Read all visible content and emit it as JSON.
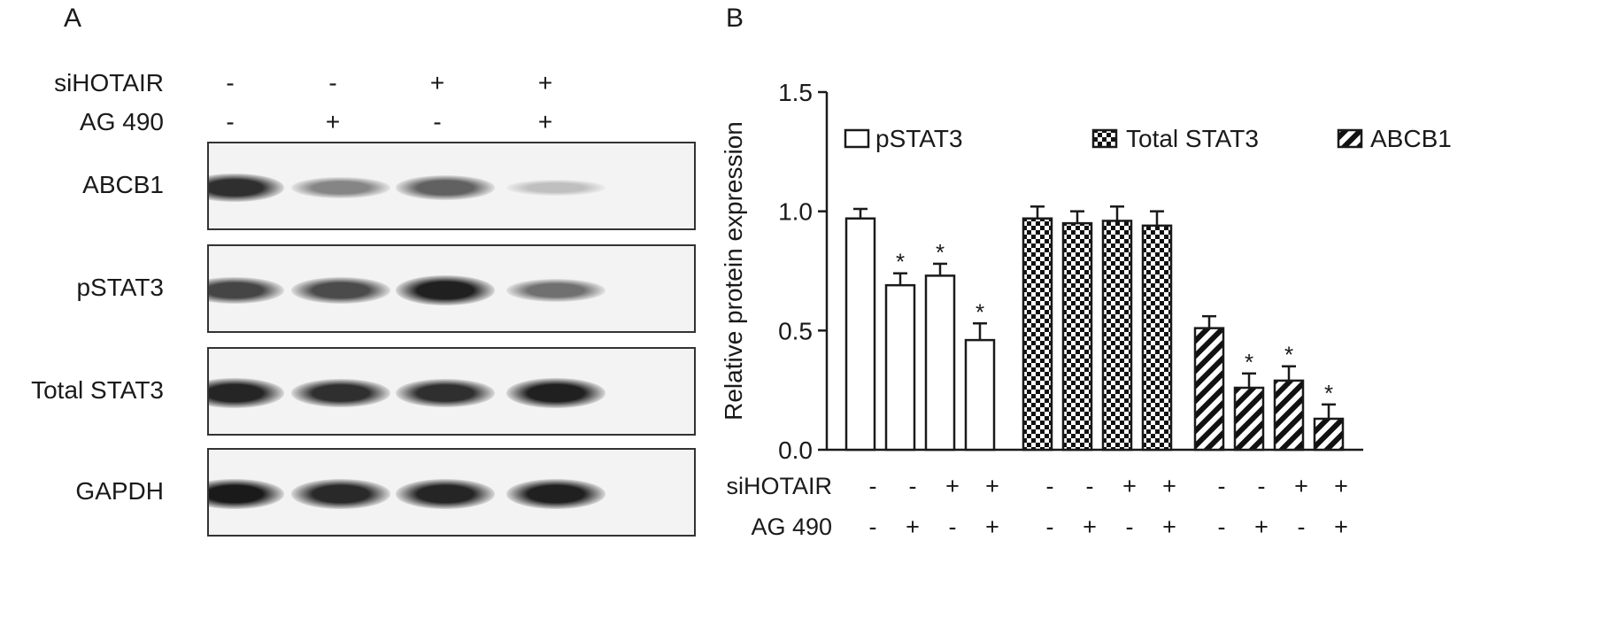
{
  "panel_a": {
    "letter": "A",
    "conditions": [
      {
        "name": "siHOTAIR",
        "signs": [
          "-",
          "-",
          "+",
          "+"
        ]
      },
      {
        "name": "AG 490",
        "signs": [
          "-",
          "+",
          "-",
          "+"
        ]
      }
    ],
    "blots": [
      {
        "label": "ABCB1",
        "intensities": [
          0.85,
          0.45,
          0.62,
          0.18
        ]
      },
      {
        "label": "pSTAT3",
        "intensities": [
          0.75,
          0.72,
          0.92,
          0.55
        ]
      },
      {
        "label": "Total STAT3",
        "intensities": [
          0.9,
          0.85,
          0.85,
          0.92
        ]
      },
      {
        "label": "GAPDH",
        "intensities": [
          0.95,
          0.88,
          0.9,
          0.92
        ]
      }
    ]
  },
  "panel_b": {
    "letter": "B",
    "row_labels": [
      "siHOTAIR",
      "AG 490"
    ]
  },
  "chart_data": {
    "type": "bar",
    "ylabel": "Relative protein expression",
    "ylim": [
      0,
      1.5
    ],
    "yticks": [
      "0.0",
      "0.5",
      "1.0",
      "1.5"
    ],
    "legend_position": "top",
    "groups": [
      {
        "name": "pSTAT3",
        "pattern": "open",
        "values": [
          0.97,
          0.69,
          0.73,
          0.46
        ],
        "errors": [
          0.04,
          0.05,
          0.05,
          0.07
        ],
        "significance": [
          "",
          "*",
          "*",
          "*"
        ]
      },
      {
        "name": "Total STAT3",
        "pattern": "checkered",
        "values": [
          0.97,
          0.95,
          0.96,
          0.94
        ],
        "errors": [
          0.05,
          0.05,
          0.06,
          0.06
        ],
        "significance": [
          "",
          "",
          "",
          ""
        ]
      },
      {
        "name": "ABCB1",
        "pattern": "hatched",
        "values": [
          0.51,
          0.26,
          0.29,
          0.13
        ],
        "errors": [
          0.05,
          0.06,
          0.06,
          0.06
        ],
        "significance": [
          "",
          "*",
          "*",
          "*"
        ]
      }
    ],
    "conditions": {
      "siHOTAIR": [
        "-",
        "-",
        "+",
        "+"
      ],
      "AG 490": [
        "-",
        "+",
        "-",
        "+"
      ]
    }
  }
}
